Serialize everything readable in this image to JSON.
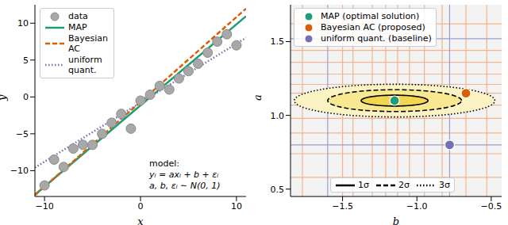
{
  "chart_data": [
    {
      "type": "scatter",
      "x_label": "x",
      "y_label": "y",
      "xlim": [
        -11,
        11
      ],
      "ylim": [
        -13.5,
        12.5
      ],
      "xticks": [
        {
          "value": -10,
          "label": "−10"
        },
        0,
        10
      ],
      "yticks": [
        {
          "value": -10,
          "label": "−10"
        },
        {
          "value": -5,
          "label": "−5"
        },
        0,
        5,
        10
      ],
      "legend": "upper left",
      "series": [
        {
          "name": "data",
          "type": "scatter",
          "color": "#a8a8a8",
          "marker": "circle",
          "x": [
            -10,
            -9,
            -8,
            -7,
            -6,
            -5,
            -4,
            -3,
            -2,
            -1,
            0,
            1,
            2,
            3,
            4,
            5,
            6,
            7,
            8,
            9,
            10
          ],
          "values": [
            -12,
            -8.5,
            -9.5,
            -7,
            -6.5,
            -6.5,
            -5,
            -3.5,
            -2.3,
            -4.3,
            -0.5,
            0.3,
            1.5,
            1,
            2.5,
            3.5,
            4.5,
            6,
            7.5,
            8.5,
            7
          ]
        },
        {
          "name": "MAP",
          "type": "line",
          "color": "#1b9e77",
          "line_style": "solid",
          "x": [
            -11,
            11
          ],
          "values": [
            -13.25,
            10.95
          ]
        },
        {
          "name": "Bayesian AC",
          "type": "line",
          "color": "#d95f02",
          "line_style": "dashed",
          "x": [
            -11,
            11
          ],
          "values": [
            -13.32,
            11.98
          ]
        },
        {
          "name": "uniform quant.",
          "type": "line",
          "color": "#7570b3",
          "line_style": "dotted",
          "x": [
            -11,
            11
          ],
          "values": [
            -9.58,
            8.02
          ]
        }
      ],
      "annotation": [
        "model:",
        "yᵢ = axᵢ + b + εᵢ",
        "a, b, εᵢ ∼ N(0, 1)"
      ]
    },
    {
      "type": "scatter",
      "x_label": "b",
      "y_label": "a",
      "xlim": [
        -1.85,
        -0.43
      ],
      "ylim": [
        0.45,
        1.75
      ],
      "xticks": [
        {
          "value": -1.5,
          "label": "−1.5"
        },
        {
          "value": -1,
          "label": "−1.0"
        },
        {
          "value": -0.5,
          "label": "−0.5"
        }
      ],
      "yticks": [
        {
          "value": 0.5,
          "label": "0.5"
        },
        {
          "value": 1,
          "label": "1.0"
        },
        {
          "value": 1.5,
          "label": "1.5"
        }
      ],
      "legend": "upper left",
      "series": [
        {
          "name": "MAP (optimal solution)",
          "color": "#1b9e77",
          "marker": "circle",
          "x": [
            -1.15
          ],
          "values": [
            1.1
          ]
        },
        {
          "name": "Bayesian AC (proposed)",
          "color": "#d95f02",
          "marker": "circle",
          "x": [
            -0.67
          ],
          "values": [
            1.15
          ]
        },
        {
          "name": "uniform quant. (baseline)",
          "color": "#7570b3",
          "marker": "circle",
          "x": [
            -0.78
          ],
          "values": [
            0.8
          ]
        }
      ],
      "contours": [
        {
          "label": "1σ",
          "b": -1.15,
          "a": 1.1,
          "b_radius": 0.225,
          "a_radius": 0.037,
          "line_style": "solid",
          "color": "#f2d64f"
        },
        {
          "label": "2σ",
          "b": -1.15,
          "a": 1.1,
          "b_radius": 0.45,
          "a_radius": 0.074,
          "line_style": "dashed",
          "color": "#f8e88f"
        },
        {
          "label": "3σ",
          "b": -1.15,
          "a": 1.1,
          "b_radius": 0.675,
          "a_radius": 0.111,
          "line_style": "dotted",
          "color": "#fbf3c4"
        }
      ],
      "grid_lines": [
        {
          "color": "#f2b48a",
          "b": [
            -1.77,
            -1.5,
            -1.43,
            -1.3,
            -1.21,
            -1.13,
            -1.05,
            -0.95,
            -0.83,
            -0.67,
            -0.53
          ],
          "a": [
            1.62,
            1.44,
            1.36,
            1.28,
            1.21,
            1.15,
            1.07,
            0.98,
            0.88,
            0.74,
            0.58
          ]
        },
        {
          "color": "#9f9bd0",
          "b": [
            -1.6,
            -0.78
          ],
          "a": [
            0.8,
            1.52
          ]
        }
      ]
    }
  ]
}
